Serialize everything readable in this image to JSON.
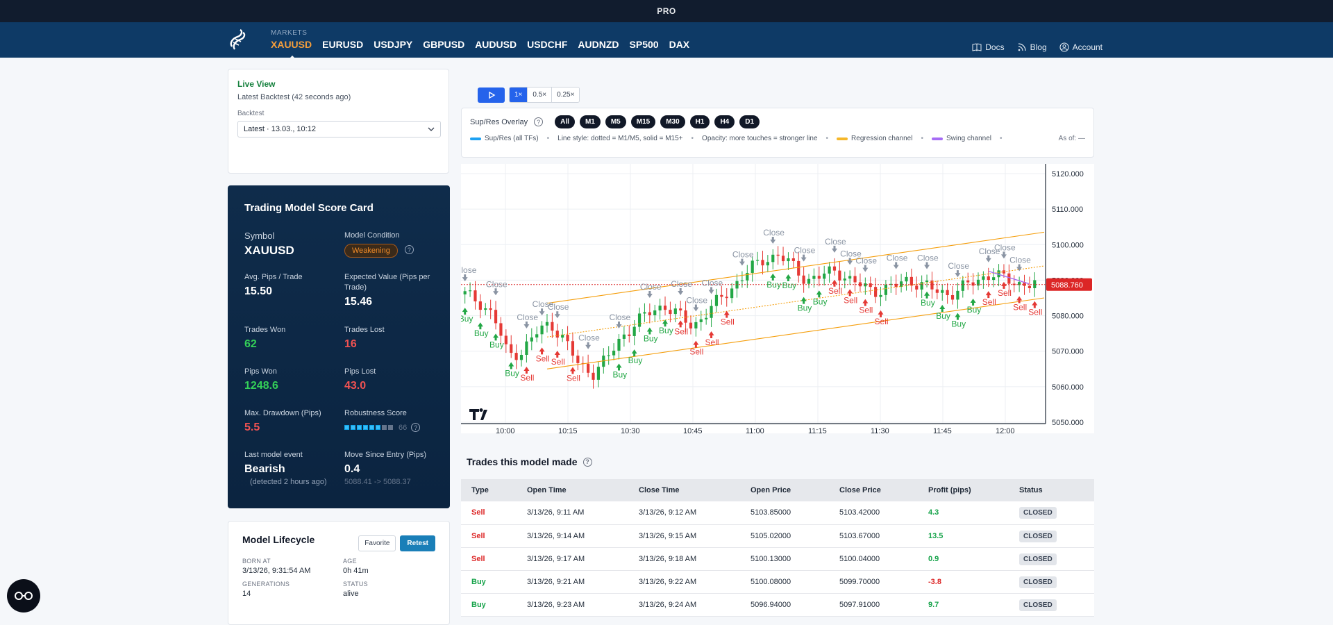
{
  "topbar": {
    "label": "PRO"
  },
  "nav": {
    "markets_label": "MARKETS",
    "markets": [
      "XAUUSD",
      "EURUSD",
      "USDJPY",
      "GBPUSD",
      "AUDUSD",
      "USDCHF",
      "AUDNZD",
      "SP500",
      "DAX"
    ],
    "active_market": "XAUUSD",
    "links": {
      "docs": "Docs",
      "blog": "Blog",
      "account": "Account"
    }
  },
  "live": {
    "title": "Live View",
    "subtitle": "Latest Backtest (42 seconds ago)",
    "backtest_label": "Backtest",
    "backtest_selected": "Latest · 13.03., 10:12"
  },
  "scorecard": {
    "title": "Trading Model Score Card",
    "symbol_label": "Symbol",
    "symbol": "XAUUSD",
    "condition_label": "Model Condition",
    "condition": "Weakening",
    "avg_pips_label": "Avg. Pips / Trade",
    "avg_pips": "15.50",
    "ev_label": "Expected Value (Pips per Trade)",
    "ev": "15.46",
    "won_label": "Trades Won",
    "won": "62",
    "lost_label": "Trades Lost",
    "lost": "16",
    "pips_won_label": "Pips Won",
    "pips_won": "1248.6",
    "pips_lost_label": "Pips Lost",
    "pips_lost": "43.0",
    "drawdown_label": "Max. Drawdown (Pips)",
    "drawdown": "5.5",
    "robust_label": "Robustness Score",
    "robust": "66",
    "robust_level": 0.66,
    "event_label": "Last model event",
    "event": "Bearish",
    "event_sub": "(detected 2 hours ago)",
    "move_label": "Move Since Entry (Pips)",
    "move": "0.4",
    "move_sub": "5088.41 -> 5088.37"
  },
  "lifecycle": {
    "title": "Model Lifecycle",
    "favorite": "Favorite",
    "retest": "Retest",
    "born_label": "BORN AT",
    "born": "3/13/26, 9:31:54 AM",
    "age_label": "AGE",
    "age": "0h 41m",
    "gen_label": "GENERATIONS",
    "gen": "14",
    "status_label": "STATUS",
    "status": "alive"
  },
  "speed": {
    "options": [
      "1×",
      "0.5×",
      "0.25×"
    ],
    "active": "1×"
  },
  "overlay": {
    "label": "Sup/Res Overlay",
    "timeframes": [
      "All",
      "M1",
      "M5",
      "M15",
      "M30",
      "H1",
      "H4",
      "D1"
    ],
    "legend_supres": "Sup/Res (all TFs)",
    "legend_style": "Line style: dotted = M1/M5, solid = M15+",
    "legend_opacity": "Opacity: more touches = stronger line",
    "legend_regression": "Regression channel",
    "legend_swing": "Swing channel",
    "asof": "As of: —",
    "colors": {
      "supres": "#1da1f2",
      "regression": "#f5b72a",
      "swing": "#a66cf5"
    }
  },
  "chart_data": {
    "type": "candlestick",
    "yticks": [
      "5120.000",
      "5110.000",
      "5100.000",
      "5090.000",
      "5080.000",
      "5070.000",
      "5060.000",
      "5050.000"
    ],
    "ylim": [
      5050,
      5120
    ],
    "xticks": [
      "10:00",
      "10:15",
      "10:30",
      "10:45",
      "11:00",
      "11:15",
      "11:30",
      "11:45",
      "12:00"
    ],
    "last_price": "5088.760",
    "markers": {
      "buy": "Buy",
      "sell": "Sell",
      "close": "Close"
    },
    "colors": {
      "up": "#22a745",
      "down": "#e53935",
      "channel": "#f59e0b",
      "price_tag": "#dc2626"
    }
  },
  "trades": {
    "title": "Trades this model made",
    "columns": [
      "Type",
      "Open Time",
      "Close Time",
      "Open Price",
      "Close Price",
      "Profit (pips)",
      "Status"
    ],
    "rows": [
      [
        "Sell",
        "3/13/26, 9:11 AM",
        "3/13/26, 9:12 AM",
        "5103.85000",
        "5103.42000",
        "4.3",
        "CLOSED"
      ],
      [
        "Sell",
        "3/13/26, 9:14 AM",
        "3/13/26, 9:15 AM",
        "5105.02000",
        "5103.67000",
        "13.5",
        "CLOSED"
      ],
      [
        "Sell",
        "3/13/26, 9:17 AM",
        "3/13/26, 9:18 AM",
        "5100.13000",
        "5100.04000",
        "0.9",
        "CLOSED"
      ],
      [
        "Buy",
        "3/13/26, 9:21 AM",
        "3/13/26, 9:22 AM",
        "5100.08000",
        "5099.70000",
        "-3.8",
        "CLOSED"
      ],
      [
        "Buy",
        "3/13/26, 9:23 AM",
        "3/13/26, 9:24 AM",
        "5096.94000",
        "5097.91000",
        "9.7",
        "CLOSED"
      ]
    ]
  }
}
